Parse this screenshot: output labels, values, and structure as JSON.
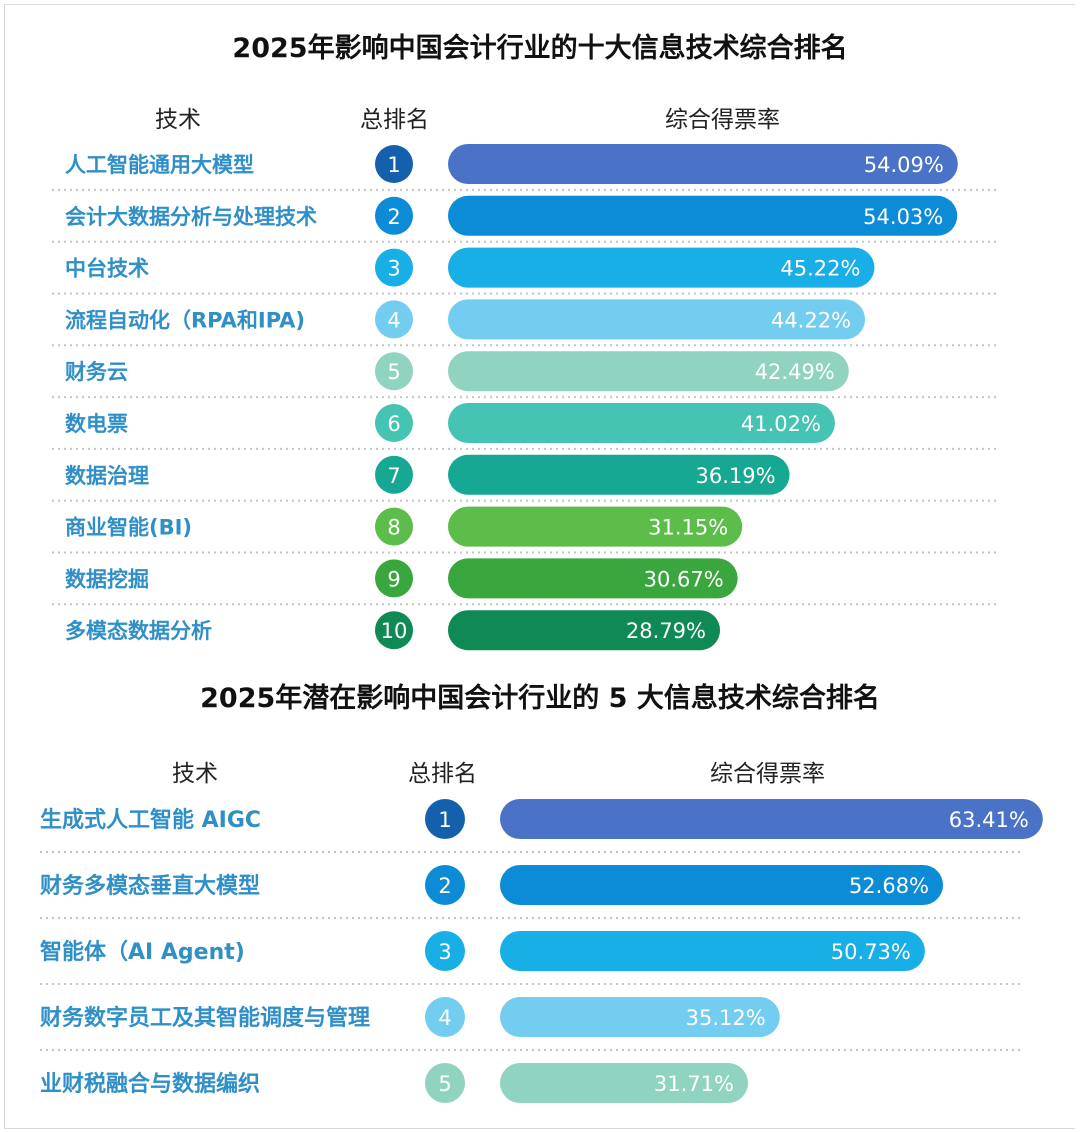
{
  "charts": [
    {
      "title": "2025年影响中国会计行业的十大信息技术综合排名",
      "headers": {
        "tech": "技术",
        "rank": "总排名",
        "rate": "综合得票率"
      },
      "chart_data": {
        "type": "bar",
        "orientation": "horizontal",
        "categories": [
          "人工智能通用大模型",
          "会计大数据分析与处理技术",
          "中台技术",
          "流程自动化（RPA和IPA)",
          "财务云",
          "数电票",
          "数据治理",
          "商业智能(BI)",
          "数据挖掘",
          "多模态数据分析"
        ],
        "ranks": [
          "1",
          "2",
          "3",
          "4",
          "5",
          "6",
          "7",
          "8",
          "9",
          "10"
        ],
        "values": [
          54.09,
          54.03,
          45.22,
          44.22,
          42.49,
          41.02,
          36.19,
          31.15,
          30.67,
          28.79
        ],
        "value_labels": [
          "54.09%",
          "54.03%",
          "45.22%",
          "44.22%",
          "42.49%",
          "41.02%",
          "36.19%",
          "31.15%",
          "30.67%",
          "28.79%"
        ],
        "colors": [
          "#4a73c8",
          "#0c8bd6",
          "#18aee6",
          "#72cdf0",
          "#8fd3c0",
          "#45c4b4",
          "#16a893",
          "#5dbd4a",
          "#3aa73e",
          "#0f8a55"
        ],
        "rank_colors": [
          "#1560ad",
          "#0c8bd6",
          "#18aee6",
          "#72cdf0",
          "#8fd3c0",
          "#45c4b4",
          "#16a893",
          "#5dbd4a",
          "#3aa73e",
          "#0f8a55"
        ],
        "grid": false
      }
    },
    {
      "title": "2025年潜在影响中国会计行业的 5 大信息技术综合排名",
      "headers": {
        "tech": "技术",
        "rank": "总排名",
        "rate": "综合得票率"
      },
      "chart_data": {
        "type": "bar",
        "orientation": "horizontal",
        "categories": [
          "生成式人工智能 AIGC",
          "财务多模态垂直大模型",
          "智能体（AI Agent)",
          "财务数字员工及其智能调度与管理",
          "业财税融合与数据编织"
        ],
        "ranks": [
          "1",
          "2",
          "3",
          "4",
          "5"
        ],
        "values": [
          63.41,
          52.68,
          50.73,
          35.12,
          31.71
        ],
        "value_labels": [
          "63.41%",
          "52.68%",
          "50.73%",
          "35.12%",
          "31.71%"
        ],
        "colors": [
          "#4a73c8",
          "#0c8bd6",
          "#18aee6",
          "#72cdf0",
          "#8fd3c0"
        ],
        "rank_colors": [
          "#1560ad",
          "#0c8bd6",
          "#18aee6",
          "#72cdf0",
          "#8fd3c0"
        ],
        "grid": false
      }
    }
  ]
}
